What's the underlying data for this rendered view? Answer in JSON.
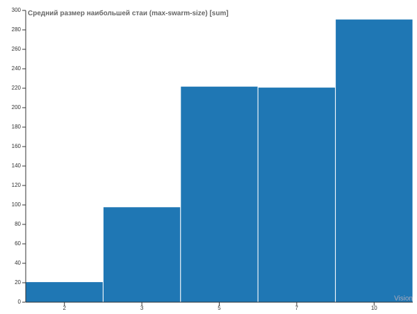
{
  "chart_data": {
    "type": "bar",
    "title": "Средний размер наибольшей стаи (max-swarm-size) [sum]",
    "categories": [
      "2",
      "3",
      "5",
      "7",
      "10"
    ],
    "values": [
      21,
      98,
      222,
      221,
      291
    ],
    "color": "#1f77b4",
    "ylim": [
      0,
      300
    ],
    "yticks": [
      0,
      20,
      40,
      60,
      80,
      100,
      120,
      140,
      160,
      180,
      200,
      220,
      240,
      260,
      280,
      300
    ],
    "watermark": "Vision"
  }
}
